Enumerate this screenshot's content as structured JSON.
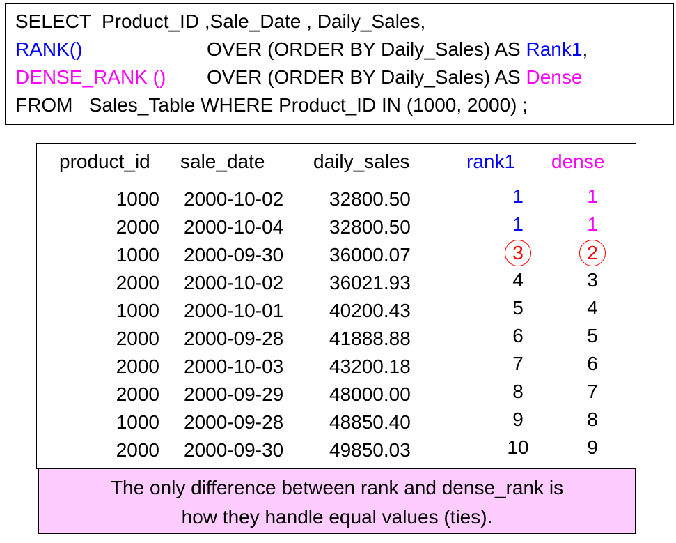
{
  "query": {
    "select": "SELECT  Product_ID ,Sale_Date , Daily_Sales,",
    "rank_fn": "RANK()",
    "rank_over": "OVER (ORDER BY Daily_Sales) AS",
    "rank_alias": "Rank1",
    "rank_comma": ",",
    "dense_fn": "DENSE_RANK ()",
    "dense_over": "OVER (ORDER BY Daily_Sales) AS",
    "dense_alias": "Dense",
    "from": "FROM   Sales_Table WHERE Product_ID IN (1000, 2000) ;"
  },
  "table": {
    "headers": [
      "product_id",
      "sale_date",
      "daily_sales",
      "rank1",
      "dense"
    ],
    "rows": [
      [
        "1000",
        "2000-10-02",
        "32800.50",
        "1",
        "1"
      ],
      [
        "2000",
        "2000-10-04",
        "32800.50",
        "1",
        "1"
      ],
      [
        "1000",
        "2000-09-30",
        "36000.07",
        "3",
        "2"
      ],
      [
        "2000",
        "2000-10-02",
        "36021.93",
        "4",
        "3"
      ],
      [
        "1000",
        "2000-10-01",
        "40200.43",
        "5",
        "4"
      ],
      [
        "2000",
        "2000-09-28",
        "41888.88",
        "6",
        "5"
      ],
      [
        "2000",
        "2000-10-03",
        "43200.18",
        "7",
        "6"
      ],
      [
        "2000",
        "2000-09-29",
        "48000.00",
        "8",
        "7"
      ],
      [
        "1000",
        "2000-09-28",
        "48850.40",
        "9",
        "8"
      ],
      [
        "2000",
        "2000-09-30",
        "49850.03",
        "10",
        "9"
      ]
    ]
  },
  "note": {
    "line1": "The only difference between rank and dense_rank is",
    "line2": "how they handle equal values (ties)."
  }
}
